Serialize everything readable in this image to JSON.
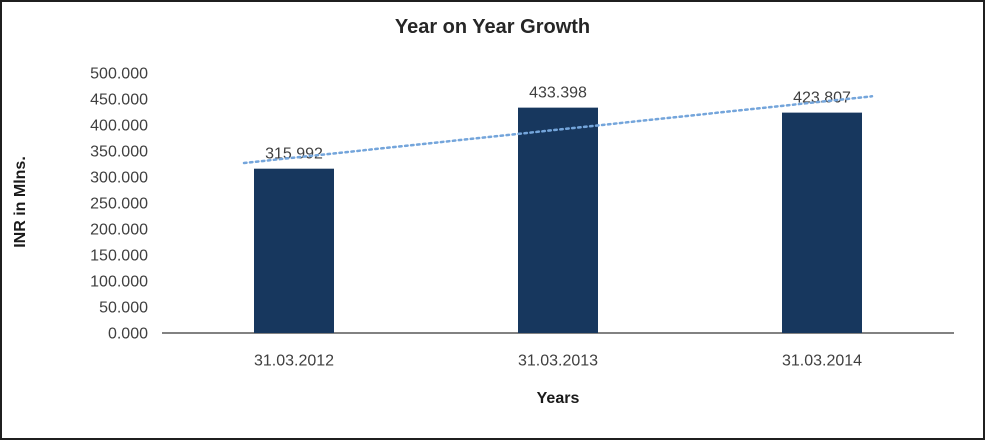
{
  "chart_data": {
    "type": "bar",
    "title": "Year on Year Growth",
    "categories": [
      "31.03.2012",
      "31.03.2013",
      "31.03.2014"
    ],
    "values": [
      315.992,
      433.398,
      423.807
    ],
    "data_labels": [
      "315.992",
      "433.398",
      "423.807"
    ],
    "xlabel": "Years",
    "ylabel": "INR in Mlns.",
    "ylim": [
      0,
      500
    ],
    "ytick_step": 50,
    "ytick_labels": [
      "0.000",
      "50.000",
      "100.000",
      "150.000",
      "200.000",
      "250.000",
      "300.000",
      "350.000",
      "400.000",
      "450.000",
      "500.000"
    ],
    "grid": false,
    "legend_position": "none",
    "trendline": {
      "type": "linear",
      "style": "dotted"
    },
    "colors": {
      "bar": "#17375E",
      "trendline": "#74A5DB",
      "title_text": "#262626",
      "label_text": "#3F3F3F",
      "axis_line": "#595959",
      "frame_border": "#1F1F1F",
      "background": "#FFFFFF"
    }
  }
}
